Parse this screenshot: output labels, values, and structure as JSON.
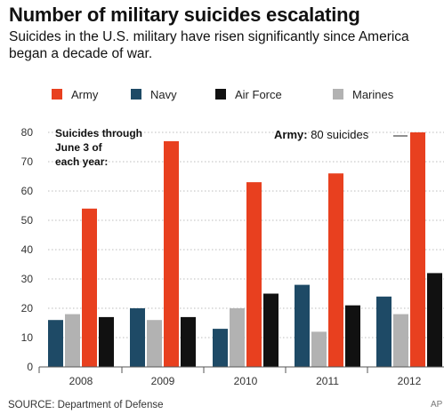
{
  "title": "Number of military suicides escalating",
  "subtitle": "Suicides in the U.S. military have risen significantly since America began a decade of war.",
  "note": [
    "Suicides through",
    "June 3 of",
    "each year:"
  ],
  "annotation": {
    "bold": "Army:",
    "rest": " 80 suicides"
  },
  "source": "SOURCE: Department of Defense",
  "credit": "AP",
  "colors": {
    "Army": "#e8401f",
    "Navy": "#1e4a66",
    "Air Force": "#111111",
    "Marines": "#b2b2b2"
  },
  "chart_data": {
    "type": "bar",
    "categories": [
      "2008",
      "2009",
      "2010",
      "2011",
      "2012"
    ],
    "series": [
      {
        "name": "Army",
        "values": [
          54,
          77,
          63,
          66,
          80
        ]
      },
      {
        "name": "Navy",
        "values": [
          16,
          20,
          13,
          28,
          24
        ]
      },
      {
        "name": "Air Force",
        "values": [
          17,
          17,
          25,
          21,
          32
        ]
      },
      {
        "name": "Marines",
        "values": [
          18,
          16,
          20,
          12,
          18
        ]
      }
    ],
    "ylim": [
      0,
      80
    ],
    "yticks": [
      0,
      10,
      20,
      30,
      40,
      50,
      60,
      70,
      80
    ],
    "grid": true,
    "legend_position": "top"
  }
}
